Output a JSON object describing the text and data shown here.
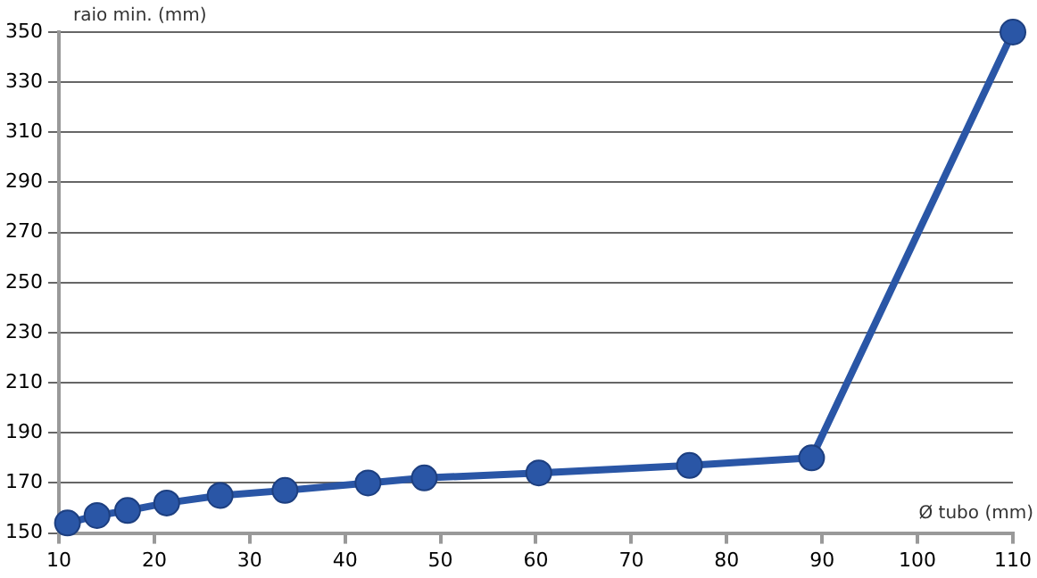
{
  "chart_data": {
    "type": "line",
    "xlabel": "Ø tubo (mm)",
    "ylabel": "raio min. (mm)",
    "x": [
      10.9,
      14,
      17.2,
      21.3,
      26.9,
      33.7,
      42.4,
      48.3,
      60.3,
      76.1,
      88.9,
      110
    ],
    "series": [
      {
        "color": "#2a56a6",
        "values": [
          154,
          157,
          159,
          162,
          165,
          167,
          170,
          172,
          174,
          177,
          180,
          350
        ]
      }
    ],
    "xlim": [
      10,
      110
    ],
    "xticks": [
      10,
      20,
      30,
      40,
      50,
      60,
      70,
      80,
      90,
      100,
      110
    ],
    "ylim": [
      150,
      350
    ],
    "yticks": [
      150,
      170,
      190,
      210,
      230,
      250,
      270,
      290,
      310,
      330,
      350
    ],
    "grid": "y",
    "legend": false,
    "marker": "circle",
    "line_style": "solid"
  }
}
